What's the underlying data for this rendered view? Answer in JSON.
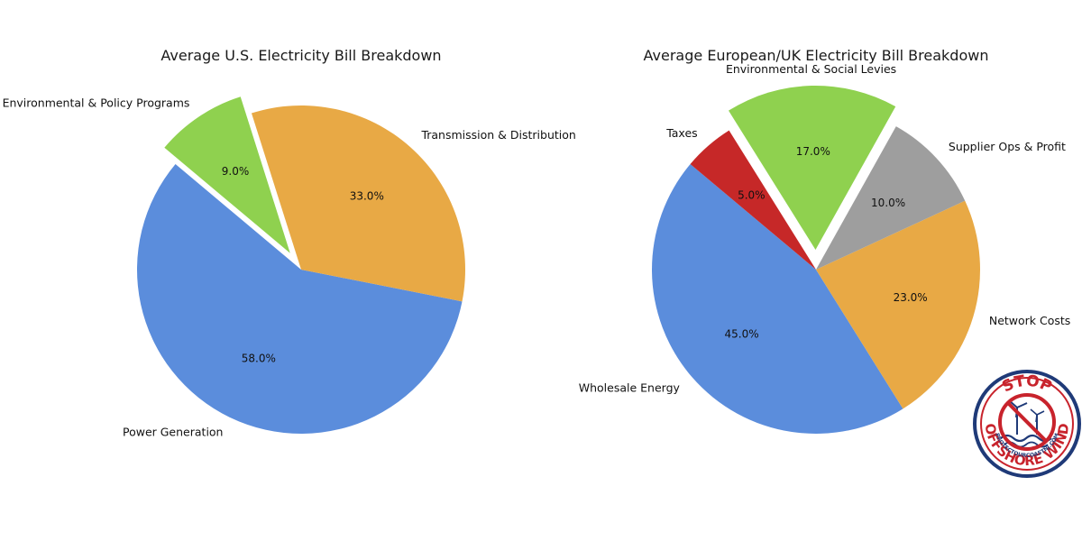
{
  "chart_data": [
    {
      "type": "pie",
      "title": "Average U.S. Electricity Bill Breakdown",
      "categories": [
        "Power Generation",
        "Transmission & Distribution",
        "Environmental & Policy Programs"
      ],
      "values": [
        58.0,
        33.0,
        9.0
      ],
      "value_labels": [
        "58.0%",
        "33.0%",
        "9.0%"
      ],
      "colors": [
        "#5b8ddc",
        "#e8a945",
        "#8fd14f"
      ],
      "exploded": [
        "Environmental & Policy Programs"
      ],
      "start_angle_deg": 140
    },
    {
      "type": "pie",
      "title": "Average European/UK Electricity Bill Breakdown",
      "categories": [
        "Wholesale Energy",
        "Network Costs",
        "Supplier Ops & Profit",
        "Environmental & Social Levies",
        "Taxes"
      ],
      "values": [
        45.0,
        23.0,
        10.0,
        17.0,
        5.0
      ],
      "value_labels": [
        "45.0%",
        "23.0%",
        "10.0%",
        "17.0%",
        "5.0%"
      ],
      "colors": [
        "#5b8ddc",
        "#e8a945",
        "#9e9e9e",
        "#8fd14f",
        "#c62828"
      ],
      "exploded": [
        "Environmental & Social Levies"
      ],
      "start_angle_deg": 140
    }
  ],
  "badge": {
    "top_text": "STOP",
    "bottom_text": "OFFSHORE WIND",
    "url_text": "PROTECTOURCOASTNJ.COM",
    "colors": {
      "red": "#c8232c",
      "navy": "#1f3a78"
    }
  }
}
